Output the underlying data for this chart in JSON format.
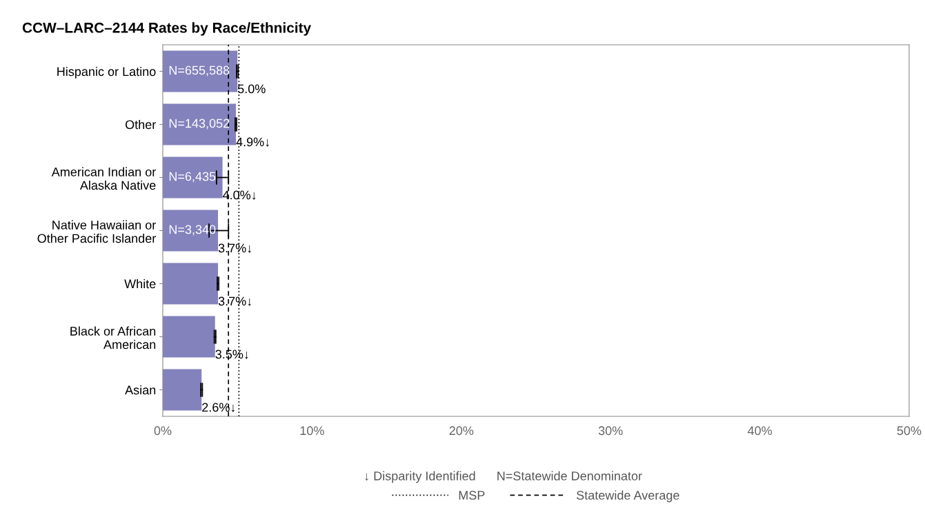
{
  "chart_data": {
    "type": "bar",
    "orientation": "horizontal",
    "title": "CCW–LARC–2144 Rates by Race/Ethnicity",
    "categories": [
      "Hispanic or Latino",
      "Other",
      "American Indian or\nAlaska Native",
      "Native Hawaiian or\nOther Pacific Islander",
      "White",
      "Black or African\nAmerican",
      "Asian"
    ],
    "values": [
      5.0,
      4.9,
      4.0,
      3.7,
      3.7,
      3.5,
      2.6
    ],
    "value_labels": [
      "5.0%",
      "4.9%↓",
      "4.0%↓",
      "3.7%↓",
      "3.7%↓",
      "3.5%↓",
      "2.6%↓"
    ],
    "errors": [
      0.05,
      0.05,
      [
        3.6,
        4.4
      ],
      [
        3.1,
        4.4
      ],
      0.05,
      0.05,
      0.05
    ],
    "color": "#8482bd",
    "xlim": [
      0,
      50
    ],
    "xticks": [
      {
        "value": 0,
        "label": "0%"
      },
      {
        "value": 10,
        "label": "10%"
      },
      {
        "value": 20,
        "label": "20%"
      },
      {
        "value": 30,
        "label": "30%"
      },
      {
        "value": 40,
        "label": "40%"
      },
      {
        "value": 50,
        "label": "50%"
      }
    ],
    "ref_lines": [
      {
        "axis": "x",
        "value": 5.1,
        "label": "MSP",
        "line_style": "dotted"
      },
      {
        "axis": "x",
        "value": 4.4,
        "label": "Statewide Average",
        "line_style": "dashed"
      }
    ],
    "annotations": [
      {
        "text": "N=655,588",
        "y": "Hispanic or Latino"
      },
      {
        "text": "N=143,052",
        "y": "Other"
      },
      {
        "text": "N=6,435",
        "y": "American Indian or\nAlaska Native"
      },
      {
        "text": "N=3,340",
        "y": "Native Hawaiian or\nOther Pacific Islander"
      },
      "↓ Disparity Identified",
      "N=Statewide Denominator"
    ],
    "legend": "bottom",
    "grid": false
  }
}
